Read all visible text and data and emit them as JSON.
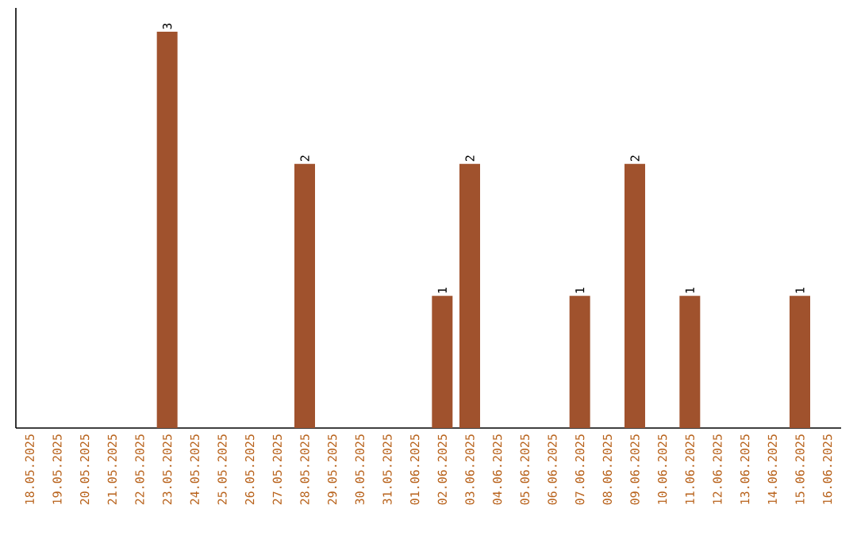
{
  "chart_data": {
    "type": "bar",
    "categories": [
      "18.05.2025",
      "19.05.2025",
      "20.05.2025",
      "21.05.2025",
      "22.05.2025",
      "23.05.2025",
      "24.05.2025",
      "25.05.2025",
      "26.05.2025",
      "27.05.2025",
      "28.05.2025",
      "29.05.2025",
      "30.05.2025",
      "31.05.2025",
      "01.06.2025",
      "02.06.2025",
      "03.06.2025",
      "04.06.2025",
      "05.06.2025",
      "06.06.2025",
      "07.06.2025",
      "08.06.2025",
      "09.06.2025",
      "10.06.2025",
      "11.06.2025",
      "12.06.2025",
      "13.06.2025",
      "14.06.2025",
      "15.06.2025",
      "16.06.2025"
    ],
    "values": [
      0,
      0,
      0,
      0,
      0,
      3,
      0,
      0,
      0,
      0,
      2,
      0,
      0,
      0,
      0,
      1,
      2,
      0,
      0,
      0,
      1,
      0,
      2,
      0,
      1,
      0,
      0,
      0,
      1,
      0
    ],
    "value_labels": [
      null,
      null,
      null,
      null,
      null,
      "3",
      null,
      null,
      null,
      null,
      "2",
      null,
      null,
      null,
      null,
      "1",
      "2",
      null,
      null,
      null,
      "1",
      null,
      "2",
      null,
      "1",
      null,
      null,
      null,
      "1",
      null
    ],
    "color": "#a0522d",
    "ylim": [
      0,
      3
    ],
    "tick_labels": "x"
  }
}
